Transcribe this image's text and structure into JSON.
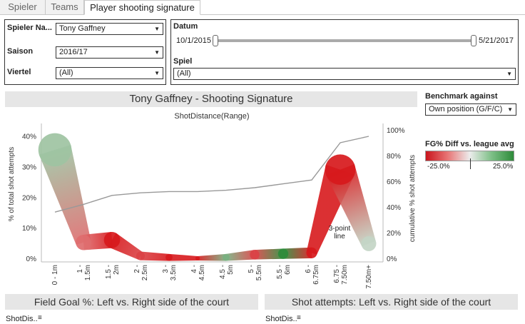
{
  "tabs": [
    {
      "label": "Spieler",
      "active": false
    },
    {
      "label": "Teams",
      "active": false
    },
    {
      "label": "Player shooting signature",
      "active": true
    }
  ],
  "filters": {
    "player_label": "Spieler Na...",
    "player_value": "Tony Gaffney",
    "season_label": "Saison",
    "season_value": "2016/17",
    "quarter_label": "Viertel",
    "quarter_value": "(All)",
    "date_label": "Datum",
    "date_start": "10/1/2015",
    "date_end": "5/21/2017",
    "game_label": "Spiel",
    "game_value": "(All)"
  },
  "main_title": "Tony Gaffney - Shooting Signature",
  "benchmark": {
    "label": "Benchmark against",
    "value": "Own position (G/F/C)"
  },
  "legend": {
    "title": "FG% Diff vs. league avg",
    "min_label": "-25.0%",
    "max_label": "25.0%",
    "colors": {
      "low": "#d7191c",
      "mid": "#e8e8e8",
      "high": "#2e8b3a"
    }
  },
  "annotation": {
    "line1": "3-point",
    "line2": "line"
  },
  "bottom": {
    "left_title": "Field Goal %: Left vs. Right side of the court",
    "right_title": "Shot attempts: Left vs. Right side of the court",
    "left_field": "ShotDis..",
    "right_field": "ShotDis.."
  },
  "chart_data": {
    "type": "line",
    "title": "ShotDistance(Range)",
    "xlabel": "",
    "ylabel": "% of total shot attempts",
    "y2label": "cumulative % shot attempts",
    "categories": [
      "0 - 1m",
      "1 - 1.5m",
      "1.5 - 2m",
      "2 - 2.5m",
      "3 - 3.5m",
      "4 - 4.5m",
      "4.5 - 5m",
      "5 - 5.5m",
      "5.5 - 6m",
      "6 - 6.75m",
      "6.75 - 7.50m",
      "7.50m+"
    ],
    "x_tick_lines": [
      [
        "0 - 1m"
      ],
      [
        "1 -",
        "1.5m"
      ],
      [
        "1.5 -",
        "2m"
      ],
      [
        "2 -",
        "2.5m"
      ],
      [
        "3 -",
        "3.5m"
      ],
      [
        "4 -",
        "4.5m"
      ],
      [
        "4.5 -",
        "5m"
      ],
      [
        "5 -",
        "5.5m"
      ],
      [
        "5.5 -",
        "6m"
      ],
      [
        "6 -",
        "6.75m"
      ],
      [
        "6.75 -",
        "7.50m"
      ],
      [
        "7.50m+"
      ]
    ],
    "ylim": [
      0,
      42
    ],
    "y_ticks": [
      0,
      10,
      20,
      30,
      40
    ],
    "y_tick_labels": [
      "0%",
      "10%",
      "20%",
      "30%",
      "40%"
    ],
    "y2lim": [
      0,
      100
    ],
    "y2_ticks": [
      0,
      20,
      40,
      60,
      80,
      100
    ],
    "y2_tick_labels": [
      "0%",
      "20%",
      "40%",
      "60%",
      "80%",
      "100%"
    ],
    "series": [
      {
        "name": "% of total shot attempts",
        "values": [
          35.5,
          5.2,
          6.0,
          0.8,
          0.3,
          0.0,
          0.3,
          1.2,
          1.5,
          1.8,
          29.0,
          4.8
        ],
        "fg_diff": [
          0.1,
          -0.15,
          -0.3,
          -0.2,
          -0.25,
          -0.3,
          0.15,
          -0.2,
          0.3,
          -0.3,
          -0.3,
          0.05
        ]
      },
      {
        "name": "cumulative % shot attempts",
        "values": [
          36,
          42,
          49,
          51,
          52,
          52,
          53,
          55,
          58,
          61,
          90,
          95
        ]
      }
    ],
    "grid": false
  }
}
